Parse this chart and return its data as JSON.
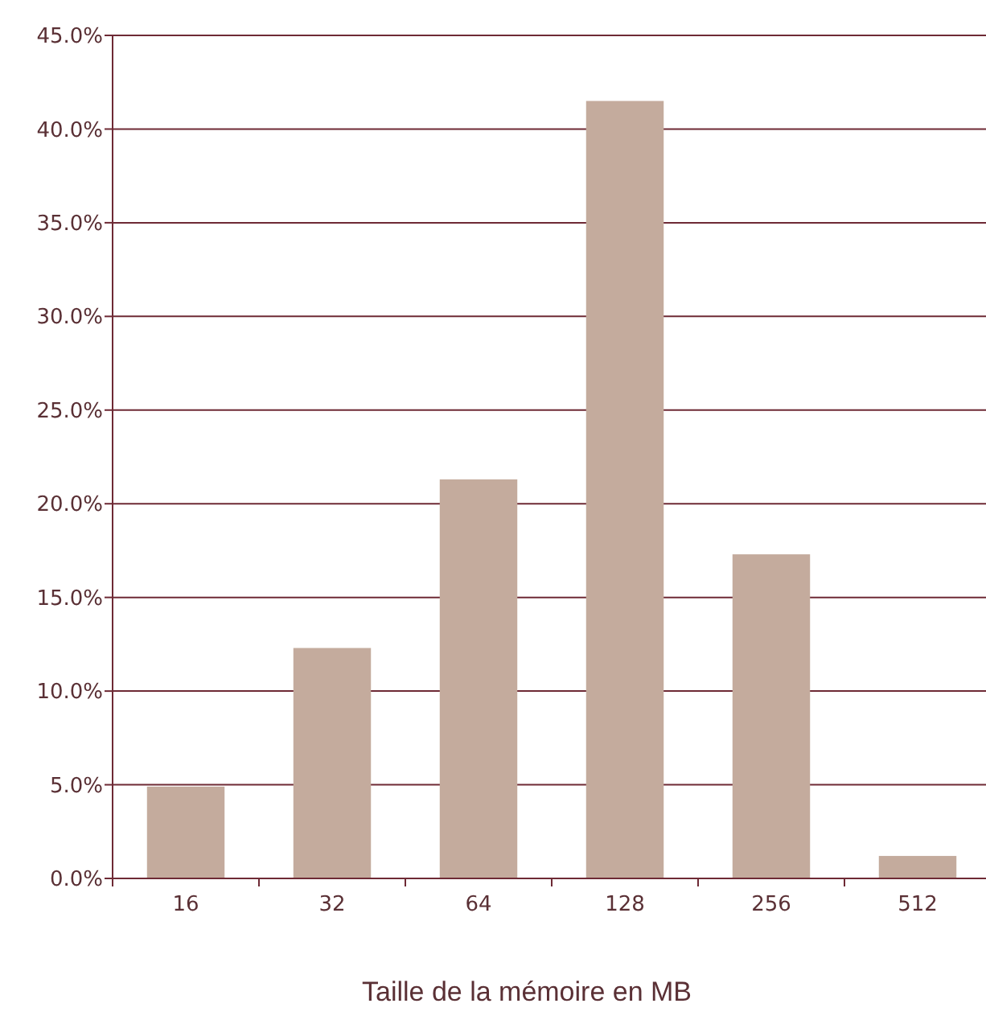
{
  "chart_data": {
    "type": "bar",
    "xlabel": "Taille de la mémoire en MB",
    "categories": [
      "16",
      "32",
      "64",
      "128",
      "256",
      "512"
    ],
    "values": [
      4.9,
      12.3,
      21.3,
      41.5,
      17.3,
      1.2
    ],
    "color": "#c4ab9d",
    "ylim": [
      0,
      45
    ],
    "yticks": [
      {
        "value": 0,
        "label": "0.0%"
      },
      {
        "value": 5,
        "label": "5.0%"
      },
      {
        "value": 10,
        "label": "10.0%"
      },
      {
        "value": 15,
        "label": "15.0%"
      },
      {
        "value": 20,
        "label": "20.0%"
      },
      {
        "value": 25,
        "label": "25.0%"
      },
      {
        "value": 30,
        "label": "30.0%"
      },
      {
        "value": 35,
        "label": "35.0%"
      },
      {
        "value": 40,
        "label": "40.0%"
      },
      {
        "value": 45,
        "label": "45.0%"
      }
    ],
    "grid": "y"
  }
}
